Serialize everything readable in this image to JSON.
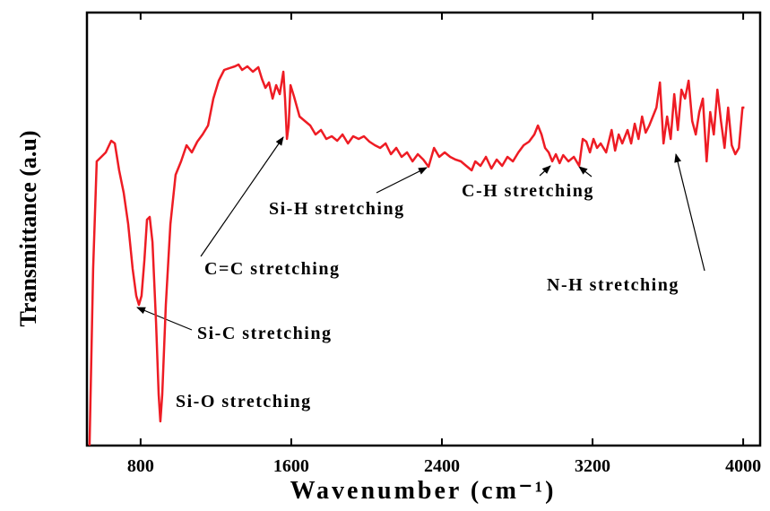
{
  "chart_data": {
    "type": "line",
    "x_label": "Wavenumber (cm⁻¹)",
    "y_label": "Transmittance (a.u)",
    "annotations": [
      "C=C stretching",
      "Si-C stretching",
      "Si-O stretching",
      "Si-H stretching",
      "C-H stretching",
      "N-H stretching"
    ],
    "color": "#ee1c24",
    "xlim": [
      515,
      4090
    ],
    "ylim": [
      0,
      483
    ],
    "xticks": [
      800,
      1600,
      2400,
      3200,
      4000
    ],
    "x": [
      529,
      548,
      567,
      591,
      615,
      644,
      663,
      686,
      710,
      734,
      758,
      777,
      791,
      805,
      820,
      834,
      848,
      863,
      882,
      896,
      905,
      915,
      934,
      958,
      986,
      1015,
      1044,
      1072,
      1101,
      1129,
      1158,
      1186,
      1215,
      1244,
      1272,
      1301,
      1320,
      1339,
      1367,
      1396,
      1425,
      1444,
      1463,
      1482,
      1501,
      1520,
      1539,
      1558,
      1567,
      1577,
      1586,
      1596,
      1615,
      1644,
      1672,
      1701,
      1729,
      1758,
      1786,
      1815,
      1844,
      1872,
      1901,
      1929,
      1958,
      1986,
      2015,
      2044,
      2072,
      2101,
      2129,
      2158,
      2186,
      2215,
      2244,
      2272,
      2301,
      2329,
      2358,
      2386,
      2415,
      2444,
      2472,
      2501,
      2529,
      2558,
      2577,
      2605,
      2634,
      2663,
      2691,
      2720,
      2748,
      2777,
      2806,
      2834,
      2863,
      2891,
      2910,
      2929,
      2948,
      2967,
      2986,
      3005,
      3025,
      3044,
      3072,
      3101,
      3129,
      3148,
      3167,
      3186,
      3205,
      3224,
      3243,
      3272,
      3301,
      3320,
      3339,
      3358,
      3386,
      3405,
      3424,
      3444,
      3463,
      3482,
      3501,
      3520,
      3539,
      3558,
      3577,
      3596,
      3615,
      3634,
      3653,
      3672,
      3691,
      3710,
      3729,
      3748,
      3767,
      3786,
      3806,
      3825,
      3844,
      3863,
      3882,
      3901,
      3920,
      3939,
      3958,
      3977,
      3996,
      4006
    ],
    "values": [
      0,
      197,
      317,
      322,
      327,
      340,
      337,
      307,
      282,
      247,
      197,
      167,
      157,
      167,
      207,
      252,
      255,
      227,
      137,
      57,
      27,
      57,
      157,
      247,
      302,
      317,
      335,
      327,
      339,
      347,
      357,
      387,
      407,
      419,
      421,
      423,
      425,
      419,
      423,
      417,
      422,
      409,
      399,
      405,
      387,
      402,
      392,
      417,
      387,
      342,
      357,
      402,
      389,
      367,
      362,
      357,
      347,
      352,
      342,
      345,
      340,
      347,
      337,
      345,
      342,
      345,
      339,
      335,
      332,
      337,
      325,
      332,
      322,
      327,
      317,
      325,
      319,
      311,
      332,
      322,
      327,
      322,
      319,
      317,
      312,
      307,
      317,
      312,
      322,
      309,
      319,
      312,
      322,
      317,
      327,
      335,
      339,
      347,
      357,
      347,
      332,
      327,
      317,
      325,
      315,
      324,
      317,
      322,
      312,
      342,
      339,
      327,
      342,
      332,
      337,
      327,
      352,
      329,
      347,
      337,
      352,
      337,
      359,
      342,
      367,
      349,
      357,
      367,
      377,
      405,
      337,
      367,
      342,
      392,
      352,
      397,
      387,
      407,
      362,
      347,
      372,
      387,
      317,
      372,
      347,
      397,
      362,
      332,
      377,
      335,
      325,
      332,
      377,
      377
    ]
  }
}
